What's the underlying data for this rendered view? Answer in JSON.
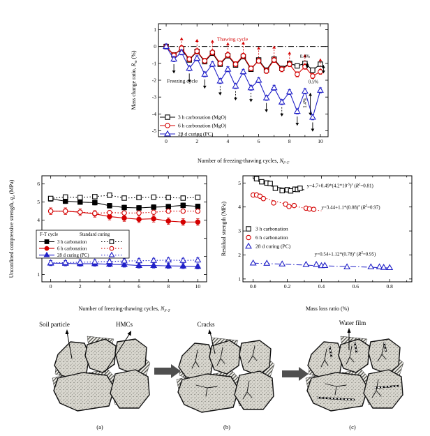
{
  "figure": {
    "background": "#ffffff"
  },
  "colors": {
    "black": "#000000",
    "red": "#d40000",
    "blue": "#2121c8",
    "panel_arrow": "#4f4f4f"
  },
  "chart_data": [
    {
      "type": "line",
      "xlabel": [
        {
          "t": "Number of freezing-thawing cycles, "
        },
        {
          "t": "N",
          "i": true
        },
        {
          "t": "F-T",
          "sub": true,
          "i": true
        }
      ],
      "ylabel": [
        {
          "t": "Mass change ratio, "
        },
        {
          "t": "R",
          "i": true
        },
        {
          "t": "m",
          "sub": true,
          "i": true
        },
        {
          "t": " (%)"
        }
      ],
      "xlim": [
        -0.5,
        10.5
      ],
      "ylim": [
        -5.35,
        1.35
      ],
      "xticks": {
        "major": [
          0,
          2,
          4,
          6,
          8,
          10
        ],
        "minor": [
          1,
          3,
          5,
          7,
          9
        ],
        "labels": [
          "0",
          "2",
          "4",
          "6",
          "8",
          "10"
        ]
      },
      "yticks": {
        "major": [
          1,
          0,
          -1,
          -2,
          -3,
          -4,
          -5
        ],
        "labels": [
          "1",
          "0",
          "-1",
          "-2",
          "-3",
          "-4",
          "-5"
        ]
      },
      "refline": {
        "y": 0,
        "style": "dashdot",
        "color": "#000000"
      },
      "x": [
        0,
        0.5,
        1,
        1.5,
        2,
        2.5,
        3,
        3.5,
        4,
        4.5,
        5,
        5.5,
        6,
        6.5,
        7,
        7.5,
        8,
        8.5,
        9,
        9.5,
        10
      ],
      "series": [
        {
          "name": "3 h carbonation (MgO)",
          "color": "#000000",
          "marker": "square",
          "filled": false,
          "line": "solid",
          "err": 0.12,
          "y": [
            0,
            -0.5,
            -0.15,
            -0.8,
            -0.3,
            -0.9,
            -0.4,
            -1.05,
            -0.55,
            -1.1,
            -0.6,
            -1.35,
            -0.8,
            -1.4,
            -0.75,
            -1.3,
            -1.0,
            -1.15,
            -1.0,
            -1.4,
            -1.05
          ]
        },
        {
          "name": "6 h carbonation (MgO)",
          "color": "#d40000",
          "marker": "circle",
          "filled": false,
          "line": "solid",
          "err": 0.15,
          "y": [
            0,
            -0.52,
            -0.1,
            -0.75,
            -0.28,
            -0.85,
            -0.35,
            -1.0,
            -0.5,
            -1.05,
            -0.55,
            -1.3,
            -0.85,
            -1.45,
            -0.8,
            -1.35,
            -1.05,
            -1.65,
            -1.2,
            -1.75,
            -1.5
          ]
        },
        {
          "name": "28 d curing (PC)",
          "color": "#2121c8",
          "marker": "triangle",
          "filled": false,
          "line": "solid",
          "err": 0.15,
          "y": [
            0,
            -0.75,
            -0.35,
            -1.3,
            -0.7,
            -1.65,
            -1.05,
            -2.05,
            -1.35,
            -2.35,
            -1.5,
            -2.45,
            -2.0,
            -3.05,
            -2.45,
            -3.3,
            -2.7,
            -3.85,
            -2.65,
            -4.2,
            -2.6
          ]
        }
      ],
      "arrows": [
        {
          "x": 1,
          "y1": 0.05,
          "y2": 0.55,
          "c": "#d40000",
          "dash": true
        },
        {
          "x": 2,
          "y1": -0.13,
          "y2": 0.45,
          "c": "#d40000",
          "dash": true
        },
        {
          "x": 3,
          "y1": -0.2,
          "y2": 0.4,
          "c": "#d40000",
          "dash": true
        },
        {
          "x": 4,
          "y1": -0.35,
          "y2": 0.25,
          "c": "#d40000",
          "dash": true
        },
        {
          "x": 5,
          "y1": -0.4,
          "y2": 0.3,
          "c": "#d40000",
          "dash": true
        },
        {
          "x": 6,
          "y1": -0.65,
          "y2": 0.0,
          "c": "#d40000",
          "dash": true
        },
        {
          "x": 7,
          "y1": -0.6,
          "y2": 0.05,
          "c": "#d40000",
          "dash": true
        },
        {
          "x": 8,
          "y1": -0.9,
          "y2": -0.3,
          "c": "#d40000",
          "dash": true
        },
        {
          "x": 9,
          "y1": -1.05,
          "y2": -0.45,
          "c": "#d40000",
          "dash": true
        },
        {
          "x": 10,
          "y1": -1.35,
          "y2": -0.7,
          "c": "#d40000",
          "dash": true
        },
        {
          "x": 0.5,
          "y1": -1.05,
          "y2": -1.6,
          "c": "#000000"
        },
        {
          "x": 1.5,
          "y1": -1.6,
          "y2": -2.15,
          "c": "#000000"
        },
        {
          "x": 2.5,
          "y1": -1.95,
          "y2": -2.5,
          "c": "#000000"
        },
        {
          "x": 3.5,
          "y1": -2.35,
          "y2": -2.9,
          "c": "#000000",
          "dash": true
        },
        {
          "x": 4.5,
          "y1": -2.65,
          "y2": -3.2,
          "c": "#000000",
          "dash": true
        },
        {
          "x": 5.5,
          "y1": -2.75,
          "y2": -3.3,
          "c": "#000000",
          "dash": true
        },
        {
          "x": 6.5,
          "y1": -3.35,
          "y2": -3.9,
          "c": "#000000"
        },
        {
          "x": 7.5,
          "y1": -3.6,
          "y2": -4.15,
          "c": "#000000",
          "dash": true
        },
        {
          "x": 8.5,
          "y1": -4.15,
          "y2": -4.7,
          "c": "#000000"
        },
        {
          "x": 9.5,
          "y1": -4.5,
          "y2": -5.05,
          "c": "#000000"
        },
        {
          "x": 9.15,
          "y1": -0.95,
          "y2": -1.3,
          "c": "#000000",
          "dbl": true
        },
        {
          "x": 10.2,
          "y1": -1.1,
          "y2": -1.6,
          "c": "#000000",
          "dbl": true
        },
        {
          "x": 9.35,
          "y1": -2.75,
          "y2": -4.1,
          "c": "#000000",
          "dbl": true
        }
      ],
      "annotations": [
        {
          "x": 4.3,
          "y": 0.33,
          "color": "#d40000",
          "anchor": "middle",
          "size": 7.5,
          "parts": [
            {
              "t": "Thawing cycle"
            }
          ]
        },
        {
          "x": 0.05,
          "y": -2.15,
          "color": "#000000",
          "anchor": "start",
          "size": 7.5,
          "parts": [
            {
              "t": "Freezing cycle"
            }
          ]
        },
        {
          "x": 9.0,
          "y": -0.68,
          "color": "#000000",
          "anchor": "middle",
          "size": 6.8,
          "parts": [
            {
              "t": "0.4%"
            }
          ]
        },
        {
          "x": 9.55,
          "y": -2.18,
          "color": "#000000",
          "anchor": "middle",
          "size": 6.8,
          "parts": [
            {
              "t": "0.5%"
            }
          ]
        },
        {
          "x": 9.1,
          "y": -3.35,
          "color": "#000000",
          "anchor": "middle",
          "size": 6.8,
          "rotate": -90,
          "parts": [
            {
              "t": "1.4%"
            }
          ]
        }
      ]
    },
    {
      "type": "line",
      "xlabel": [
        {
          "t": "Number of freezing-thawing cycles, "
        },
        {
          "t": "N",
          "i": true
        },
        {
          "t": "F-T",
          "sub": true,
          "i": true
        }
      ],
      "ylabel": [
        {
          "t": "Unconfined compressive strength, "
        },
        {
          "t": "q",
          "i": true
        },
        {
          "t": "u",
          "sub": true,
          "i": true
        },
        {
          "t": " (MPa)"
        }
      ],
      "xlim": [
        -0.6,
        10.6
      ],
      "ylim": [
        0.6,
        6.45
      ],
      "xticks": {
        "major": [
          0,
          2,
          4,
          6,
          8,
          10
        ],
        "minor": [
          1,
          3,
          5,
          7,
          9
        ],
        "labels": [
          "0",
          "2",
          "4",
          "6",
          "8",
          "10"
        ]
      },
      "yticks": {
        "major": [
          1,
          2,
          3,
          4,
          5,
          6
        ],
        "labels": [
          "1",
          "2",
          "3",
          "4",
          "5",
          "6"
        ]
      },
      "x": [
        0,
        1,
        2,
        3,
        4,
        5,
        6,
        7,
        8,
        9,
        10
      ],
      "legend": {
        "header": [
          "F-T cycle",
          "Standard curing"
        ],
        "pairs": [
          [
            0,
            1
          ],
          [
            2,
            3
          ],
          [
            4,
            5
          ]
        ]
      },
      "series": [
        {
          "name": "3 h carbonation",
          "color": "#000000",
          "marker": "square",
          "filled": true,
          "line": "solid",
          "err": 0.13,
          "y": [
            5.18,
            5.05,
            5.0,
            4.97,
            4.8,
            4.7,
            4.68,
            4.72,
            4.75,
            4.82,
            4.76
          ]
        },
        {
          "name": "3 h carbonation",
          "color": "#000000",
          "marker": "square",
          "filled": false,
          "line": "dot",
          "err": 0.1,
          "y": [
            5.2,
            5.28,
            5.25,
            5.3,
            5.38,
            5.22,
            5.25,
            5.27,
            5.25,
            5.22,
            5.26
          ]
        },
        {
          "name": "6 h carbonation",
          "color": "#d40000",
          "marker": "circle",
          "filled": true,
          "line": "solid",
          "err": 0.18,
          "y": [
            4.5,
            4.5,
            4.44,
            4.35,
            4.2,
            4.12,
            4.05,
            4.08,
            3.95,
            3.9,
            3.9
          ]
        },
        {
          "name": "6 h carbonation",
          "color": "#d40000",
          "marker": "circle",
          "filled": false,
          "line": "dot",
          "err": 0.08,
          "y": [
            4.5,
            4.5,
            4.45,
            4.38,
            4.42,
            4.4,
            4.4,
            4.44,
            4.5,
            4.5,
            4.5
          ]
        },
        {
          "name": "28 d curing (PC)",
          "color": "#2121c8",
          "marker": "triangle",
          "filled": true,
          "line": "solid",
          "err": 0.14,
          "y": [
            1.63,
            1.62,
            1.6,
            1.6,
            1.57,
            1.55,
            1.5,
            1.5,
            1.48,
            1.47,
            1.45
          ]
        },
        {
          "name": "28 d curing (PC)",
          "color": "#2121c8",
          "marker": "triangle",
          "filled": false,
          "line": "dot",
          "err": 0.12,
          "y": [
            1.65,
            1.66,
            1.68,
            1.7,
            1.72,
            1.75,
            1.76,
            1.78,
            1.8,
            1.78,
            1.8
          ]
        }
      ]
    },
    {
      "type": "scatter",
      "xlabel": [
        {
          "t": "Mass loss ratio (%)"
        }
      ],
      "ylabel": [
        {
          "t": "Residual strength (MPa)"
        }
      ],
      "xlim": [
        -0.06,
        0.93
      ],
      "ylim": [
        0.88,
        5.3
      ],
      "xticks": {
        "major": [
          0,
          0.2,
          0.4,
          0.6,
          0.8
        ],
        "minor": [
          0.1,
          0.3,
          0.5,
          0.7,
          0.9
        ],
        "labels": [
          "0.0",
          "0.2",
          "0.4",
          "0.6",
          "0.8"
        ]
      },
      "yticks": {
        "major": [
          1,
          2,
          3,
          4,
          5
        ],
        "labels": [
          "1",
          "2",
          "3",
          "4",
          "5"
        ]
      },
      "series": [
        {
          "name": "3 h carbonation",
          "color": "#000000",
          "marker": "square",
          "filled": false,
          "line": "none",
          "x": [
            0.02,
            0.05,
            0.08,
            0.1,
            0.13,
            0.17,
            0.2,
            0.22,
            0.245,
            0.26,
            0.275
          ],
          "y": [
            5.18,
            5.05,
            5.0,
            4.98,
            4.78,
            4.68,
            4.72,
            4.67,
            4.74,
            4.73,
            4.78
          ],
          "fit": {
            "style": "solid",
            "x": [
              0.0,
              0.05,
              0.1,
              0.15,
              0.2,
              0.25,
              0.3
            ],
            "y": [
              5.19,
              5.0,
              4.88,
              4.81,
              4.77,
              4.74,
              4.72
            ]
          }
        },
        {
          "name": "6 h carbonation",
          "color": "#d40000",
          "marker": "circle",
          "filled": false,
          "line": "none",
          "x": [
            0.0,
            0.02,
            0.04,
            0.06,
            0.12,
            0.19,
            0.21,
            0.24,
            0.31,
            0.33,
            0.355
          ],
          "y": [
            4.5,
            4.5,
            4.45,
            4.35,
            4.17,
            4.12,
            4.02,
            4.06,
            3.95,
            3.92,
            3.9
          ],
          "fit": {
            "style": "dot",
            "x": [
              0.0,
              0.1,
              0.2,
              0.3,
              0.4
            ],
            "y": [
              4.54,
              4.3,
              4.1,
              3.95,
              3.84
            ]
          }
        },
        {
          "name": "28 d curing (PC)",
          "color": "#2121c8",
          "marker": "triangle",
          "filled": false,
          "line": "none",
          "x": [
            0.0,
            0.08,
            0.17,
            0.31,
            0.37,
            0.4,
            0.42,
            0.55,
            0.69,
            0.74,
            0.765,
            0.8
          ],
          "y": [
            1.66,
            1.65,
            1.62,
            1.6,
            1.6,
            1.55,
            1.56,
            1.5,
            1.5,
            1.5,
            1.48,
            1.47
          ],
          "fit": {
            "style": "dashdot",
            "x": [
              0.0,
              0.2,
              0.4,
              0.6,
              0.8
            ],
            "y": [
              1.66,
              1.61,
              1.55,
              1.51,
              1.46
            ]
          }
        }
      ],
      "annotations": [
        {
          "x": 0.315,
          "y": 4.82,
          "color": "#000000",
          "anchor": "start",
          "size": 7,
          "parts": [
            {
              "t": "y=4.7+0.49*(4.2*10"
            },
            {
              "t": "-5",
              "sup": true
            },
            {
              "t": ")"
            },
            {
              "t": "x",
              "sup": true,
              "i": true
            },
            {
              "t": "   ("
            },
            {
              "t": "R",
              "i": true
            },
            {
              "t": "2",
              "sup": true
            },
            {
              "t": "=0.81)"
            }
          ]
        },
        {
          "x": 0.4,
          "y": 3.92,
          "color": "#000000",
          "anchor": "start",
          "size": 7,
          "parts": [
            {
              "t": "y=3.44+1.1*(0.08)"
            },
            {
              "t": "x",
              "sup": true,
              "i": true
            },
            {
              "t": "   ("
            },
            {
              "t": "R",
              "i": true
            },
            {
              "t": "2",
              "sup": true
            },
            {
              "t": "=0.97)"
            }
          ]
        },
        {
          "x": 0.36,
          "y": 1.97,
          "color": "#000000",
          "anchor": "start",
          "size": 7,
          "parts": [
            {
              "t": "y=0.54+1.12*(0.78)"
            },
            {
              "t": "x",
              "sup": true,
              "i": true
            },
            {
              "t": "   ("
            },
            {
              "t": "R",
              "i": true
            },
            {
              "t": "2",
              "sup": true
            },
            {
              "t": "=0.95)"
            }
          ]
        }
      ]
    }
  ],
  "diagram": {
    "labels": {
      "soil_particle": "Soil particle",
      "hmcs": "HMCs",
      "cracks": "Cracks",
      "water_film": "Water film",
      "panel_a": "(a)",
      "panel_b": "(b)",
      "panel_c": "(c)"
    }
  }
}
